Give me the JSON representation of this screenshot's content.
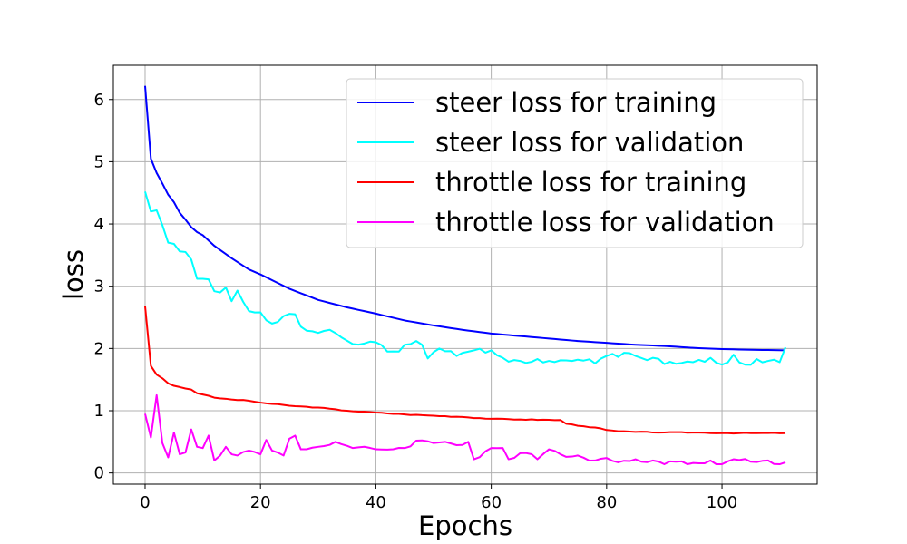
{
  "chart_data": {
    "type": "line",
    "title": "",
    "xlabel": "Epochs",
    "ylabel": "loss",
    "xlim": [
      -5.5,
      116.5
    ],
    "ylim": [
      -0.18,
      6.55
    ],
    "xticks": [
      0,
      20,
      40,
      60,
      80,
      100
    ],
    "yticks": [
      0,
      1,
      2,
      3,
      4,
      5,
      6
    ],
    "grid": true,
    "legend_position": "top-right",
    "series": [
      {
        "name": "steer loss for training",
        "color": "#0000ff",
        "keypoints": [
          [
            0,
            6.22
          ],
          [
            1,
            5.05
          ],
          [
            2,
            4.82
          ],
          [
            3,
            4.65
          ],
          [
            4,
            4.47
          ],
          [
            5,
            4.35
          ],
          [
            6,
            4.18
          ],
          [
            7,
            4.07
          ],
          [
            8,
            3.95
          ],
          [
            9,
            3.87
          ],
          [
            10,
            3.82
          ],
          [
            12,
            3.65
          ],
          [
            15,
            3.45
          ],
          [
            18,
            3.27
          ],
          [
            20,
            3.19
          ],
          [
            25,
            2.96
          ],
          [
            30,
            2.78
          ],
          [
            35,
            2.66
          ],
          [
            40,
            2.56
          ],
          [
            45,
            2.45
          ],
          [
            50,
            2.37
          ],
          [
            55,
            2.3
          ],
          [
            60,
            2.24
          ],
          [
            65,
            2.2
          ],
          [
            70,
            2.16
          ],
          [
            75,
            2.12
          ],
          [
            80,
            2.09
          ],
          [
            85,
            2.06
          ],
          [
            90,
            2.04
          ],
          [
            95,
            2.01
          ],
          [
            100,
            1.99
          ],
          [
            105,
            1.98
          ],
          [
            111,
            1.97
          ]
        ],
        "noise": 0.0,
        "seed": 1
      },
      {
        "name": "steer loss for validation",
        "color": "#00ffff",
        "keypoints": [
          [
            0,
            4.52
          ],
          [
            1,
            4.2
          ],
          [
            2,
            4.22
          ],
          [
            3,
            3.98
          ],
          [
            4,
            3.7
          ],
          [
            5,
            3.68
          ],
          [
            6,
            3.56
          ],
          [
            7,
            3.55
          ],
          [
            8,
            3.43
          ],
          [
            9,
            3.12
          ],
          [
            10,
            3.12
          ],
          [
            11,
            3.11
          ],
          [
            12,
            2.92
          ],
          [
            13,
            2.9
          ],
          [
            14,
            2.98
          ],
          [
            15,
            2.76
          ],
          [
            16,
            2.93
          ],
          [
            17,
            2.75
          ],
          [
            18,
            2.6
          ],
          [
            20,
            2.58
          ],
          [
            22,
            2.4
          ],
          [
            24,
            2.52
          ],
          [
            26,
            2.55
          ],
          [
            27,
            2.35
          ],
          [
            30,
            2.25
          ],
          [
            32,
            2.3
          ],
          [
            34,
            2.18
          ],
          [
            36,
            2.07
          ],
          [
            38,
            2.08
          ],
          [
            40,
            2.1
          ],
          [
            42,
            1.95
          ],
          [
            44,
            1.95
          ],
          [
            46,
            2.07
          ],
          [
            47,
            2.12
          ],
          [
            48,
            2.06
          ],
          [
            49,
            1.84
          ],
          [
            51,
            2.0
          ],
          [
            54,
            1.88
          ],
          [
            57,
            1.97
          ],
          [
            60,
            1.97
          ],
          [
            62,
            1.85
          ],
          [
            65,
            1.8
          ],
          [
            68,
            1.83
          ],
          [
            70,
            1.8
          ],
          [
            75,
            1.82
          ],
          [
            78,
            1.76
          ],
          [
            80,
            1.88
          ],
          [
            83,
            1.93
          ],
          [
            85,
            1.88
          ],
          [
            88,
            1.85
          ],
          [
            90,
            1.75
          ],
          [
            95,
            1.78
          ],
          [
            98,
            1.85
          ],
          [
            100,
            1.74
          ],
          [
            102,
            1.9
          ],
          [
            104,
            1.74
          ],
          [
            106,
            1.83
          ],
          [
            108,
            1.8
          ],
          [
            110,
            1.78
          ],
          [
            111,
            2.02
          ]
        ],
        "noise": 0.05,
        "seed": 2
      },
      {
        "name": "throttle loss  for training",
        "color": "#ff0000",
        "keypoints": [
          [
            0,
            2.68
          ],
          [
            1,
            1.72
          ],
          [
            2,
            1.58
          ],
          [
            3,
            1.52
          ],
          [
            4,
            1.44
          ],
          [
            5,
            1.4
          ],
          [
            6,
            1.38
          ],
          [
            8,
            1.34
          ],
          [
            9,
            1.28
          ],
          [
            10,
            1.26
          ],
          [
            12,
            1.21
          ],
          [
            15,
            1.18
          ],
          [
            18,
            1.16
          ],
          [
            20,
            1.13
          ],
          [
            25,
            1.08
          ],
          [
            30,
            1.05
          ],
          [
            35,
            1.0
          ],
          [
            40,
            0.97
          ],
          [
            45,
            0.94
          ],
          [
            50,
            0.92
          ],
          [
            55,
            0.9
          ],
          [
            60,
            0.87
          ],
          [
            65,
            0.86
          ],
          [
            72,
            0.85
          ],
          [
            73,
            0.79
          ],
          [
            76,
            0.75
          ],
          [
            78,
            0.73
          ],
          [
            80,
            0.69
          ],
          [
            82,
            0.67
          ],
          [
            85,
            0.66
          ],
          [
            90,
            0.65
          ],
          [
            95,
            0.65
          ],
          [
            100,
            0.64
          ],
          [
            105,
            0.64
          ],
          [
            111,
            0.64
          ]
        ],
        "noise": 0.006,
        "seed": 3
      },
      {
        "name": "throttle loss for validation",
        "color": "#ff00ff",
        "keypoints": [
          [
            0,
            0.95
          ],
          [
            1,
            0.57
          ],
          [
            2,
            1.25
          ],
          [
            3,
            0.48
          ],
          [
            4,
            0.25
          ],
          [
            5,
            0.65
          ],
          [
            6,
            0.3
          ],
          [
            7,
            0.33
          ],
          [
            8,
            0.7
          ],
          [
            9,
            0.42
          ],
          [
            10,
            0.4
          ],
          [
            11,
            0.6
          ],
          [
            12,
            0.2
          ],
          [
            14,
            0.42
          ],
          [
            15,
            0.3
          ],
          [
            16,
            0.28
          ],
          [
            18,
            0.36
          ],
          [
            20,
            0.3
          ],
          [
            21,
            0.53
          ],
          [
            22,
            0.36
          ],
          [
            24,
            0.28
          ],
          [
            25,
            0.55
          ],
          [
            26,
            0.6
          ],
          [
            27,
            0.38
          ],
          [
            30,
            0.42
          ],
          [
            33,
            0.5
          ],
          [
            36,
            0.4
          ],
          [
            40,
            0.38
          ],
          [
            45,
            0.4
          ],
          [
            47,
            0.52
          ],
          [
            50,
            0.48
          ],
          [
            52,
            0.5
          ],
          [
            55,
            0.45
          ],
          [
            56,
            0.5
          ],
          [
            57,
            0.22
          ],
          [
            60,
            0.4
          ],
          [
            62,
            0.4
          ],
          [
            63,
            0.22
          ],
          [
            66,
            0.32
          ],
          [
            68,
            0.22
          ],
          [
            70,
            0.38
          ],
          [
            72,
            0.3
          ],
          [
            75,
            0.28
          ],
          [
            78,
            0.2
          ],
          [
            80,
            0.24
          ],
          [
            82,
            0.17
          ],
          [
            85,
            0.22
          ],
          [
            88,
            0.2
          ],
          [
            90,
            0.14
          ],
          [
            92,
            0.18
          ],
          [
            95,
            0.16
          ],
          [
            98,
            0.2
          ],
          [
            100,
            0.14
          ],
          [
            102,
            0.22
          ],
          [
            105,
            0.18
          ],
          [
            108,
            0.2
          ],
          [
            110,
            0.14
          ],
          [
            111,
            0.17
          ]
        ],
        "noise": 0.035,
        "seed": 4
      }
    ]
  }
}
